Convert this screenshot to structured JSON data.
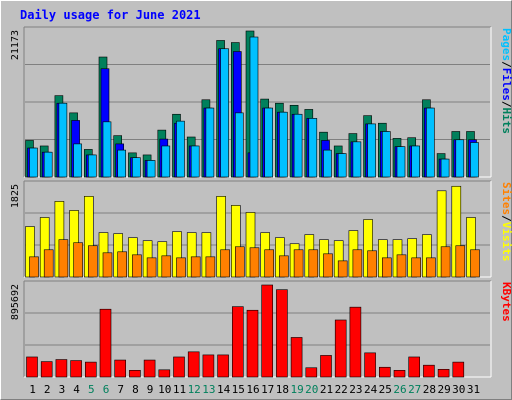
{
  "chart_data": {
    "type": "bar",
    "title": "Daily usage for June 2021",
    "colors": {
      "hits": "#00805c",
      "files": "#0000ff",
      "pages": "#00c0ff",
      "visits": "#ffff00",
      "sites": "#ff8000",
      "kbytes": "#ff0000",
      "weekend_day": "#00805c",
      "weekday": "#000000",
      "background": "#c0c0c0",
      "grid": "#808080",
      "title": "#0000ff"
    },
    "days": [
      "1",
      "2",
      "3",
      "4",
      "5",
      "6",
      "7",
      "8",
      "9",
      "10",
      "11",
      "12",
      "13",
      "14",
      "15",
      "16",
      "17",
      "18",
      "19",
      "20",
      "21",
      "22",
      "23",
      "24",
      "25",
      "26",
      "27",
      "28",
      "29",
      "30",
      "31"
    ],
    "weekend_days": [
      "5",
      "6",
      "12",
      "13",
      "19",
      "20",
      "26",
      "27"
    ],
    "top_panel": {
      "label": "21173",
      "ylim": [
        0,
        21173
      ],
      "axis_labels": [
        {
          "text": "Pages",
          "color": "#00c0ff"
        },
        {
          "text": "/",
          "color": "#000000"
        },
        {
          "text": "Files",
          "color": "#0000ff"
        },
        {
          "text": "/",
          "color": "#000000"
        },
        {
          "text": "Hits",
          "color": "#00805c"
        }
      ],
      "series": [
        {
          "name": "Hits",
          "values": [
            5300,
            4500,
            11800,
            9300,
            4000,
            17400,
            6000,
            3500,
            3200,
            6800,
            9100,
            5800,
            11200,
            19800,
            19500,
            21173,
            11300,
            10700,
            10400,
            9800,
            6500,
            4500,
            6300,
            8900,
            7800,
            5600,
            5700,
            11200,
            3400,
            6600,
            6600
          ]
        },
        {
          "name": "Files",
          "values": [
            4200,
            3600,
            10700,
            8200,
            3200,
            15700,
            4800,
            2800,
            2400,
            5500,
            7800,
            4500,
            10000,
            18600,
            18200,
            3500,
            10000,
            9400,
            9100,
            8500,
            5300,
            3400,
            5100,
            7700,
            6600,
            4400,
            4500,
            10000,
            2600,
            5400,
            5400
          ]
        },
        {
          "name": "Pages",
          "values": [
            4200,
            3600,
            10700,
            4800,
            3200,
            8000,
            3900,
            2800,
            2400,
            4500,
            8100,
            4500,
            10000,
            18600,
            9300,
            20300,
            10000,
            9400,
            9100,
            8500,
            3900,
            3400,
            5100,
            7700,
            6600,
            4400,
            4500,
            10000,
            2600,
            5400,
            5000
          ]
        }
      ]
    },
    "middle_panel": {
      "label": "1825",
      "ylim": [
        0,
        1825
      ],
      "axis_labels": [
        {
          "text": "Sites",
          "color": "#ff8000"
        },
        {
          "text": "/",
          "color": "#000000"
        },
        {
          "text": "Visits",
          "color": "#ffff00"
        }
      ],
      "series": [
        {
          "name": "Visits",
          "values": [
            1000,
            1180,
            1500,
            1320,
            1600,
            880,
            860,
            780,
            720,
            700,
            900,
            880,
            880,
            1600,
            1420,
            1280,
            880,
            780,
            660,
            840,
            740,
            720,
            920,
            1140,
            740,
            740,
            760,
            840,
            1710,
            1800,
            1180
          ]
        },
        {
          "name": "Sites",
          "values": [
            400,
            540,
            740,
            680,
            620,
            480,
            500,
            440,
            380,
            420,
            380,
            400,
            400,
            540,
            600,
            580,
            540,
            420,
            540,
            540,
            460,
            320,
            540,
            520,
            380,
            440,
            380,
            380,
            600,
            620,
            540
          ]
        }
      ]
    },
    "bottom_panel": {
      "label": "895692",
      "ylim": [
        0,
        895692
      ],
      "axis_labels": [
        {
          "text": "KBytes",
          "color": "#ff0000"
        }
      ],
      "series": [
        {
          "name": "KBytes",
          "values": [
            195000,
            150000,
            170000,
            160000,
            145000,
            660000,
            165000,
            65000,
            165000,
            70000,
            195000,
            245000,
            215000,
            215000,
            685000,
            650000,
            895692,
            850000,
            385000,
            90000,
            210000,
            555000,
            680000,
            235000,
            95000,
            65000,
            195000,
            115000,
            75000,
            145000,
            0
          ]
        }
      ]
    }
  }
}
